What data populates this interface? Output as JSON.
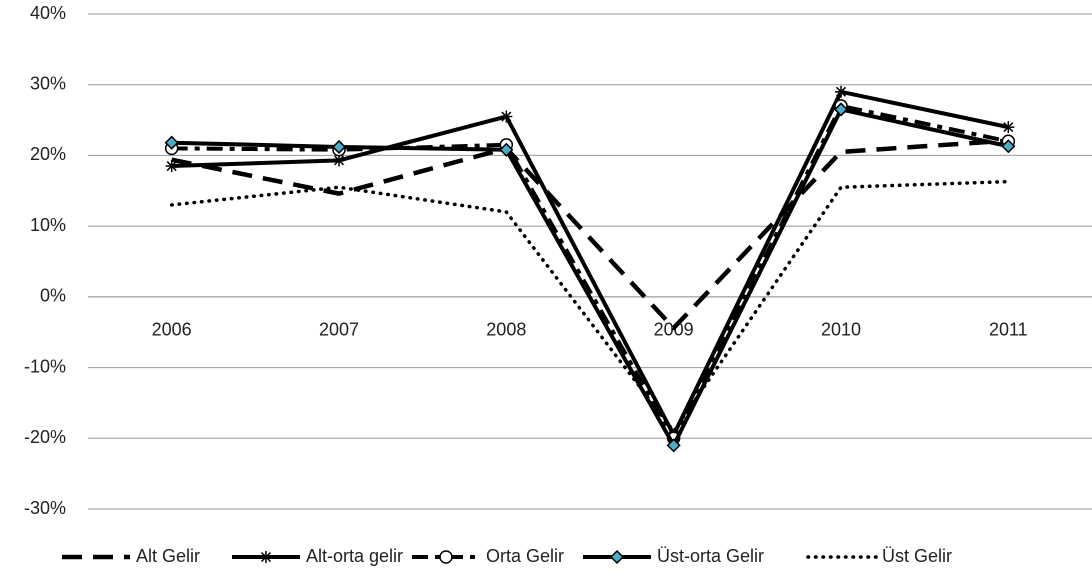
{
  "chart_data": {
    "type": "line",
    "categories": [
      "2006",
      "2007",
      "2008",
      "2009",
      "2010",
      "2011"
    ],
    "series": [
      {
        "name": "Alt Gelir",
        "color": "#000000",
        "style": "dashed",
        "marker": "none",
        "values": [
          19.4,
          14.6,
          21,
          -4.4,
          20.5,
          22.1
        ]
      },
      {
        "name": "Alt-orta gelir",
        "color": "#000000",
        "style": "solid",
        "marker": "asterisk",
        "values": [
          18.5,
          19.3,
          25.5,
          -19.5,
          29,
          24
        ]
      },
      {
        "name": "Orta Gelir",
        "color": "#000000",
        "style": "dash-dot",
        "marker": "circle",
        "values": [
          21,
          20.8,
          21.5,
          -20,
          27,
          22
        ]
      },
      {
        "name": "Üst-orta Gelir",
        "color": "#000000",
        "style": "solid",
        "marker": "diamond",
        "marker_color": "#4bacc6",
        "values": [
          21.8,
          21.2,
          20.8,
          -21,
          26.5,
          21.3
        ]
      },
      {
        "name": "Üst Gelir",
        "color": "#000000",
        "style": "dotted",
        "marker": "none",
        "values": [
          13,
          15.5,
          12,
          -19,
          15.5,
          16.3
        ]
      }
    ],
    "ylim": [
      -30,
      40
    ],
    "yticks": [
      {
        "value": -30,
        "label": "-30%"
      },
      {
        "value": -20,
        "label": "-20%"
      },
      {
        "value": -10,
        "label": "-10%"
      },
      {
        "value": 0,
        "label": "0%"
      },
      {
        "value": 10,
        "label": "10%"
      },
      {
        "value": 20,
        "label": "20%"
      },
      {
        "value": 30,
        "label": "30%"
      },
      {
        "value": 40,
        "label": "40%"
      }
    ],
    "grid": true,
    "legend": "bottom"
  }
}
